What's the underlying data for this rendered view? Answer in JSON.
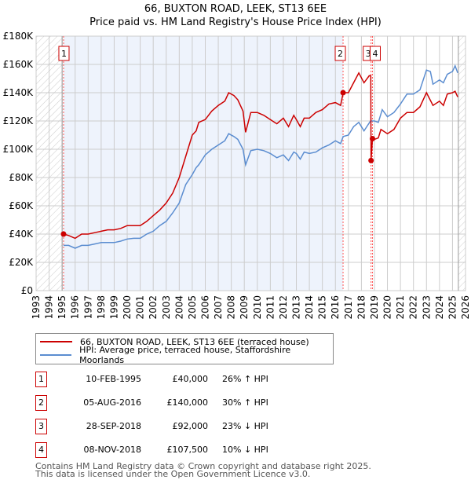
{
  "chart_data": {
    "type": "line",
    "title": "66, BUXTON ROAD, LEEK, ST13 6EE",
    "subtitle": "Price paid vs. HM Land Registry's House Price Index (HPI)",
    "xlim": [
      1993,
      2026
    ],
    "ylim": [
      0,
      180000
    ],
    "x_ticks": [
      "1993",
      "1994",
      "1995",
      "1996",
      "1997",
      "1998",
      "1999",
      "2000",
      "2001",
      "2002",
      "2003",
      "2004",
      "2005",
      "2006",
      "2007",
      "2008",
      "2009",
      "2010",
      "2011",
      "2012",
      "2013",
      "2014",
      "2015",
      "2016",
      "2017",
      "2018",
      "2019",
      "2020",
      "2021",
      "2022",
      "2023",
      "2024",
      "2025",
      "2026"
    ],
    "y_ticks": [
      {
        "v": 0,
        "label": "£0"
      },
      {
        "v": 20000,
        "label": "£20K"
      },
      {
        "v": 40000,
        "label": "£40K"
      },
      {
        "v": 60000,
        "label": "£60K"
      },
      {
        "v": 80000,
        "label": "£80K"
      },
      {
        "v": 100000,
        "label": "£100K"
      },
      {
        "v": 120000,
        "label": "£120K"
      },
      {
        "v": 140000,
        "label": "£140K"
      },
      {
        "v": 160000,
        "label": "£160K"
      },
      {
        "v": 180000,
        "label": "£180K"
      }
    ],
    "grid": true,
    "series": [
      {
        "name": "66, BUXTON ROAD, LEEK, ST13 6EE (terraced house)",
        "color": "#cc0000",
        "x": [
          1995.1,
          1995.5,
          1996,
          1996.5,
          1997,
          1997.5,
          1998,
          1998.5,
          1999,
          1999.5,
          2000,
          2000.5,
          2001,
          2001.5,
          2002,
          2002.5,
          2003,
          2003.5,
          2004,
          2004.5,
          2005,
          2005.3,
          2005.5,
          2006,
          2006.5,
          2007,
          2007.5,
          2007.8,
          2008.2,
          2008.5,
          2008.9,
          2009.1,
          2009.5,
          2010,
          2010.5,
          2011,
          2011.5,
          2012,
          2012.4,
          2012.8,
          2013,
          2013.3,
          2013.6,
          2014,
          2014.5,
          2015,
          2015.5,
          2016,
          2016.4,
          2016.6,
          2017,
          2017.4,
          2017.8,
          2018.2,
          2018.6,
          2018.72,
          2018.74,
          2018.85,
          2019,
          2019.3,
          2019.5,
          2020,
          2020.5,
          2021,
          2021.5,
          2022,
          2022.5,
          2023,
          2023.5,
          2024,
          2024.3,
          2024.6,
          2025,
          2025.2,
          2025.4
        ],
        "y": [
          40000,
          39000,
          37000,
          40000,
          40000,
          41000,
          42000,
          43000,
          43000,
          44000,
          46000,
          46000,
          46000,
          49000,
          53000,
          57000,
          62000,
          69000,
          80000,
          95000,
          110000,
          113000,
          119000,
          121000,
          127000,
          131000,
          134000,
          140000,
          138000,
          135000,
          127000,
          112000,
          126000,
          126000,
          124000,
          121000,
          118000,
          122000,
          116000,
          124000,
          121000,
          116000,
          122000,
          122000,
          126000,
          128000,
          132000,
          133000,
          131000,
          140000,
          140000,
          147000,
          154000,
          147000,
          152000,
          152000,
          92000,
          107500,
          107000,
          108000,
          114000,
          111000,
          114000,
          122000,
          126000,
          126000,
          130000,
          140000,
          131000,
          134000,
          131000,
          139000,
          140000,
          141000,
          137000
        ]
      },
      {
        "name": "HPI: Average price, terraced house, Staffordshire Moorlands",
        "color": "#5b8dd0",
        "x": [
          1995.1,
          1995.5,
          1996,
          1996.5,
          1997,
          1997.5,
          1998,
          1998.5,
          1999,
          1999.5,
          2000,
          2000.5,
          2001,
          2001.5,
          2002,
          2002.5,
          2003,
          2003.5,
          2004,
          2004.5,
          2005,
          2005.3,
          2005.5,
          2006,
          2006.5,
          2007,
          2007.5,
          2007.8,
          2008.2,
          2008.5,
          2008.9,
          2009.1,
          2009.5,
          2010,
          2010.5,
          2011,
          2011.5,
          2012,
          2012.4,
          2012.8,
          2013,
          2013.3,
          2013.6,
          2014,
          2014.5,
          2015,
          2015.5,
          2016,
          2016.4,
          2016.6,
          2017,
          2017.4,
          2017.8,
          2018.2,
          2018.7,
          2019,
          2019.3,
          2019.6,
          2020,
          2020.5,
          2021,
          2021.5,
          2022,
          2022.5,
          2023,
          2023.3,
          2023.5,
          2024,
          2024.3,
          2024.6,
          2025,
          2025.2,
          2025.4
        ],
        "y": [
          32000,
          32000,
          30000,
          32000,
          32000,
          33000,
          34000,
          34000,
          34000,
          35000,
          36500,
          37000,
          37000,
          40000,
          42000,
          46000,
          49000,
          55000,
          62000,
          75000,
          82000,
          87000,
          89000,
          96000,
          100000,
          103000,
          106000,
          111000,
          109000,
          107000,
          100000,
          89000,
          99000,
          100000,
          99000,
          97000,
          94000,
          96000,
          92000,
          98000,
          97000,
          93000,
          98000,
          97000,
          98000,
          101000,
          103000,
          106000,
          104000,
          109000,
          110000,
          116000,
          119000,
          113000,
          120000,
          120000,
          119000,
          128000,
          123000,
          126000,
          132000,
          139000,
          139000,
          142000,
          156000,
          155000,
          146000,
          149000,
          147000,
          153000,
          155000,
          159000,
          154000
        ]
      }
    ],
    "sales": [
      {
        "id": "1",
        "x": 1995.11,
        "y": 40000,
        "date": "10-FEB-1995",
        "price": "£40,000",
        "hpi": "26% ↑ HPI"
      },
      {
        "id": "2",
        "x": 2016.59,
        "y": 140000,
        "date": "05-AUG-2016",
        "price": "£140,000",
        "hpi": "30% ↑ HPI"
      },
      {
        "id": "3",
        "x": 2018.74,
        "y": 92000,
        "date": "28-SEP-2018",
        "price": "£92,000",
        "hpi": "23% ↓ HPI"
      },
      {
        "id": "4",
        "x": 2018.85,
        "y": 107500,
        "date": "08-NOV-2018",
        "price": "£107,500",
        "hpi": "10% ↓ HPI"
      }
    ]
  },
  "footer": {
    "line1": "Contains HM Land Registry data © Crown copyright and database right 2025.",
    "line2": "This data is licensed under the Open Government Licence v3.0."
  }
}
